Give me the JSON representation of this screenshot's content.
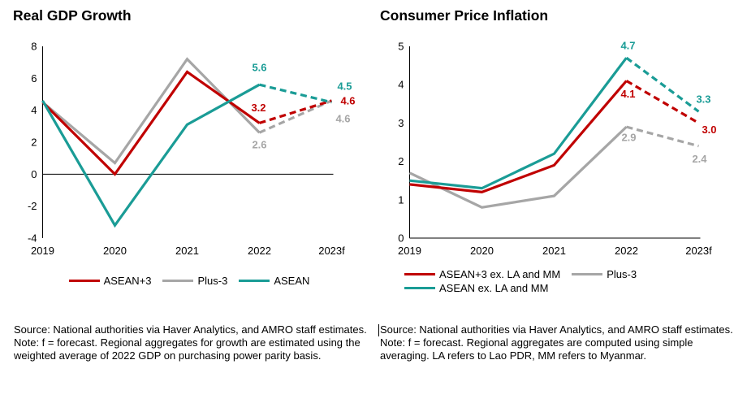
{
  "panels": [
    {
      "source": "Source: National authorities via Haver Analytics, and AMRO staff estimates.",
      "note": "Note: f = forecast. Regional aggregates for growth are estimated using the weighted average of 2022 GDP on purchasing power parity basis."
    },
    {
      "source": "Source: National authorities via Haver Analytics, and AMRO staff estimates.",
      "note": "Note: f = forecast. Regional aggregates are computed using simple averaging. LA refers to Lao PDR, MM refers to Myanmar."
    }
  ],
  "colors": {
    "red": "#C00000",
    "gray": "#A6A6A6",
    "teal": "#1A9C96",
    "axis": "#000000"
  },
  "chart_data": [
    {
      "type": "line",
      "title": "Real GDP Growth",
      "categories": [
        "2019",
        "2020",
        "2021",
        "2022",
        "2023f"
      ],
      "xlabel": "",
      "ylabel": "",
      "ylim": [
        -4,
        8
      ],
      "yticks": [
        8,
        6,
        4,
        2,
        0,
        -2,
        -4
      ],
      "grid": false,
      "legend_position": "bottom-center",
      "forecast_dashed_from_index": 3,
      "series": [
        {
          "name": "Plus-3",
          "color": "#A6A6A6",
          "values": [
            4.5,
            0.7,
            7.2,
            2.6,
            4.6
          ],
          "point_labels": [
            {
              "i": 3,
              "text": "2.6",
              "dx": 0,
              "dy": 15
            },
            {
              "i": 4,
              "text": "4.6",
              "dx": 14,
              "dy": 22
            }
          ]
        },
        {
          "name": "ASEAN+3",
          "color": "#C00000",
          "values": [
            4.5,
            0.0,
            6.4,
            3.2,
            4.6
          ],
          "point_labels": [
            {
              "i": 3,
              "text": "3.2",
              "dx": -1,
              "dy": -19
            },
            {
              "i": 4,
              "text": "4.6",
              "dx": 20,
              "dy": 0
            }
          ]
        },
        {
          "name": "ASEAN",
          "color": "#1A9C96",
          "values": [
            4.6,
            -3.2,
            3.1,
            5.6,
            4.5
          ],
          "point_labels": [
            {
              "i": 3,
              "text": "5.6",
              "dx": 0,
              "dy": -21
            },
            {
              "i": 4,
              "text": "4.5",
              "dx": 16,
              "dy": -20
            }
          ]
        }
      ],
      "legend_rows": [
        [
          {
            "label": "ASEAN+3",
            "color": "#C00000"
          },
          {
            "label": "Plus-3",
            "color": "#A6A6A6"
          },
          {
            "label": "ASEAN",
            "color": "#1A9C96"
          }
        ]
      ]
    },
    {
      "type": "line",
      "title": "Consumer Price Inflation",
      "categories": [
        "2019",
        "2020",
        "2021",
        "2022",
        "2023f"
      ],
      "xlabel": "",
      "ylabel": "",
      "ylim": [
        0,
        5
      ],
      "yticks": [
        5,
        4,
        3,
        2,
        1,
        0
      ],
      "grid": false,
      "legend_position": "bottom-left",
      "forecast_dashed_from_index": 3,
      "series": [
        {
          "name": "Plus-3",
          "color": "#A6A6A6",
          "values": [
            1.7,
            0.8,
            1.1,
            2.9,
            2.4
          ],
          "point_labels": [
            {
              "i": 3,
              "text": "2.9",
              "dx": 3,
              "dy": 13
            },
            {
              "i": 4,
              "text": "2.4",
              "dx": 1,
              "dy": 16
            }
          ]
        },
        {
          "name": "ASEAN+3 ex. LA and MM",
          "color": "#C00000",
          "values": [
            1.4,
            1.2,
            1.9,
            4.1,
            3.0
          ],
          "point_labels": [
            {
              "i": 3,
              "text": "4.1",
              "dx": 2,
              "dy": 16
            },
            {
              "i": 4,
              "text": "3.0",
              "dx": 13,
              "dy": 8
            }
          ]
        },
        {
          "name": "ASEAN ex. LA and MM",
          "color": "#1A9C96",
          "values": [
            1.5,
            1.3,
            2.2,
            4.7,
            3.3
          ],
          "point_labels": [
            {
              "i": 3,
              "text": "4.7",
              "dx": 2,
              "dy": -15
            },
            {
              "i": 4,
              "text": "3.3",
              "dx": 6,
              "dy": -15
            }
          ]
        }
      ],
      "legend_rows": [
        [
          {
            "label": "ASEAN+3 ex. LA and MM",
            "color": "#C00000"
          },
          {
            "label": "Plus-3",
            "color": "#A6A6A6"
          }
        ],
        [
          {
            "label": "ASEAN ex. LA and MM",
            "color": "#1A9C96"
          }
        ]
      ]
    }
  ]
}
